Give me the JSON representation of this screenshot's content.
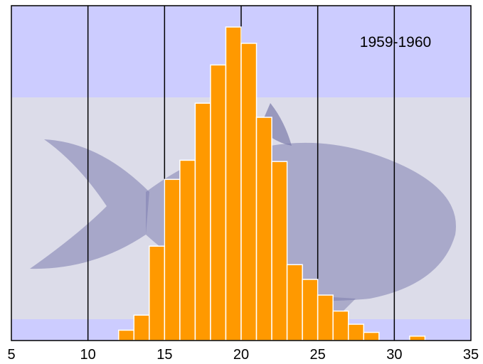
{
  "chart_data": {
    "type": "bar",
    "title": "",
    "xlabel": "",
    "ylabel": "",
    "annotation": "1959-1960",
    "xlim": [
      5,
      35
    ],
    "ylim": [
      0,
      1
    ],
    "x_ticks": [
      5,
      10,
      15,
      20,
      25,
      30,
      35
    ],
    "bin_width": 1,
    "bins": [
      {
        "x": 12,
        "value": 0.033
      },
      {
        "x": 13,
        "value": 0.081
      },
      {
        "x": 14,
        "value": 0.301
      },
      {
        "x": 15,
        "value": 0.514
      },
      {
        "x": 16,
        "value": 0.575
      },
      {
        "x": 17,
        "value": 0.757
      },
      {
        "x": 18,
        "value": 0.879
      },
      {
        "x": 19,
        "value": 1.0
      },
      {
        "x": 20,
        "value": 0.948
      },
      {
        "x": 21,
        "value": 0.712
      },
      {
        "x": 22,
        "value": 0.571
      },
      {
        "x": 23,
        "value": 0.242
      },
      {
        "x": 24,
        "value": 0.195
      },
      {
        "x": 25,
        "value": 0.145
      },
      {
        "x": 26,
        "value": 0.094
      },
      {
        "x": 27,
        "value": 0.052
      },
      {
        "x": 28,
        "value": 0.026
      },
      {
        "x": 31,
        "value": 0.014
      }
    ],
    "gridlines_x": [
      10,
      15,
      20,
      25,
      30
    ],
    "colors": {
      "bar_fill": "#ff9900",
      "bar_stroke": "#ffffff",
      "plot_background": "#ccccff",
      "gridline": "#000000"
    },
    "background_image": "fish-print"
  }
}
